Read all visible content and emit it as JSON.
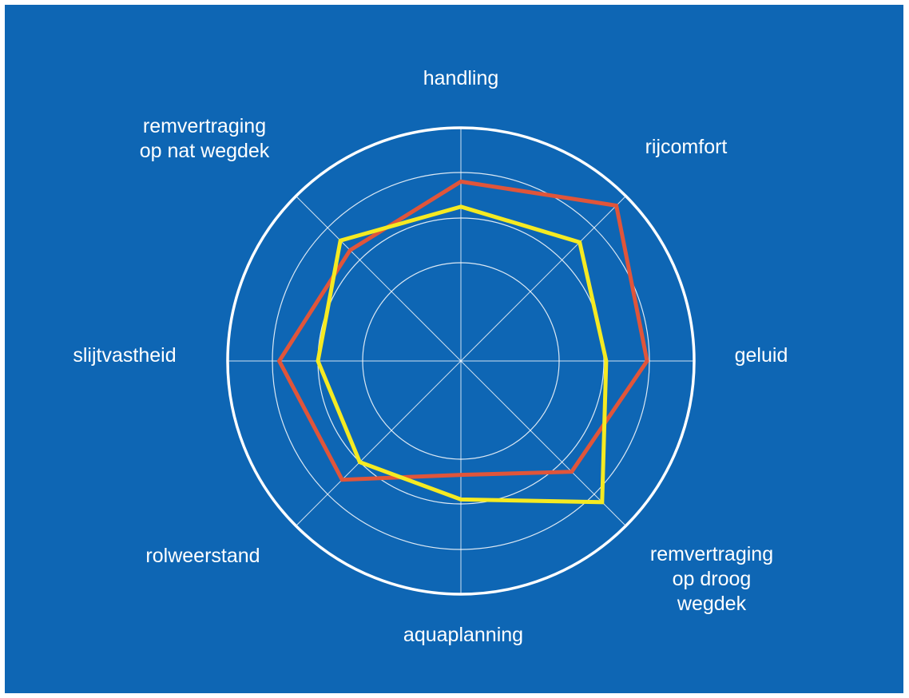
{
  "colors": {
    "background": "#0e66b4",
    "grid": "#ffffff",
    "series_red": "#e0553a",
    "series_yellow": "#f5ea22"
  },
  "chart_data": {
    "type": "radar",
    "title": "",
    "legend": "none",
    "grid": true,
    "rings": 4,
    "scale": [
      0,
      4
    ],
    "axes": [
      "handling",
      "rijcomfort",
      "geluid",
      "remvertraging op droog wegdek",
      "aquaplanning",
      "rolweerstand",
      "slijtvastheid",
      "remvertraging op nat wegdek"
    ],
    "axis_label_lines": [
      [
        "handling"
      ],
      [
        "rijcomfort"
      ],
      [
        "geluid"
      ],
      [
        "remvertraging",
        "op droog",
        "wegdek"
      ],
      [
        "aquaplanning"
      ],
      [
        "rolweerstand"
      ],
      [
        "slijtvastheid"
      ],
      [
        "remvertraging",
        "op nat wegdek"
      ]
    ],
    "series": [
      {
        "color": "#e0553a",
        "values": [
          2.8,
          3.7,
          2.95,
          2.3,
          1.35,
          2.55,
          2.85,
          2.3
        ]
      },
      {
        "color": "#f5ea22",
        "values": [
          2.25,
          2.55,
          2.05,
          3.25,
          1.9,
          2.0,
          2.0,
          2.6
        ]
      }
    ]
  }
}
